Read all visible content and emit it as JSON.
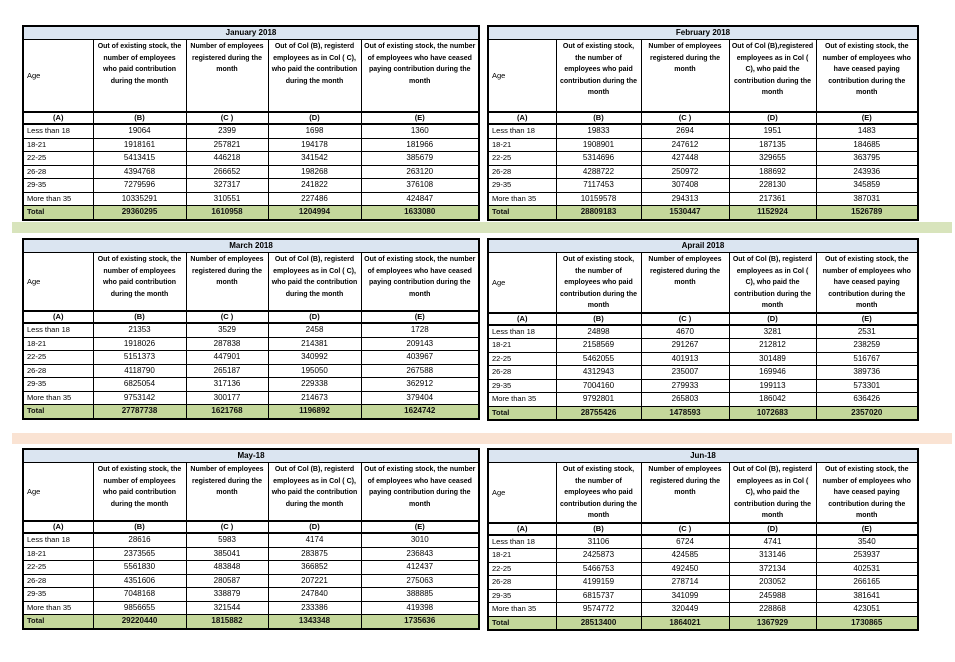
{
  "age_header": "Age",
  "total_label": "Total",
  "column_letters": [
    "(A)",
    "(B)",
    "(C )",
    "(D)",
    "(E)"
  ],
  "colors": {
    "title_bar_bg": "#DBE5F1",
    "total_row_bg": "#C4D79B",
    "green_band": "#D8E4BC",
    "peach_band": "#FAE3D3",
    "border": "#000000",
    "page_bg": "#FFFFFF"
  },
  "months": [
    {
      "title": "January 2018",
      "headers": {
        "b": "Out of existing stock, the number of employees who paid contribution during the month",
        "c": "Number of employees registered during the month",
        "d": "Out of Col (B), registerd employees as in Col ( C), who paid the contribution during the month",
        "e": "Out of existing stock, the number of  employees who have ceased paying contribution during the month"
      },
      "rows": [
        {
          "age": "Less than 18",
          "b": "19064",
          "c": "2399",
          "d": "1698",
          "e": "1360"
        },
        {
          "age": "18-21",
          "b": "1918161",
          "c": "257821",
          "d": "194178",
          "e": "181966"
        },
        {
          "age": "22-25",
          "b": "5413415",
          "c": "446218",
          "d": "341542",
          "e": "385679"
        },
        {
          "age": "26-28",
          "b": "4394768",
          "c": "266652",
          "d": "198268",
          "e": "263120"
        },
        {
          "age": "29-35",
          "b": "7279596",
          "c": "327317",
          "d": "241822",
          "e": "376108"
        },
        {
          "age": "More than 35",
          "b": "10335291",
          "c": "310551",
          "d": "227486",
          "e": "424847"
        }
      ],
      "total": {
        "b": "29360295",
        "c": "1610958",
        "d": "1204994",
        "e": "1633080"
      }
    },
    {
      "title": "February 2018",
      "headers": {
        "b": "Out of existing stock, the number of employees who paid contribution during the month",
        "c": "Number of employees registered during the month",
        "d": "Out of Col (B),registered employees as in Col ( C), who paid the contribution during the month",
        "e": "Out of existing stock, the number of  employees who have ceased paying contribution during the month"
      },
      "rows": [
        {
          "age": "Less than 18",
          "b": "19833",
          "c": "2694",
          "d": "1951",
          "e": "1483"
        },
        {
          "age": "18-21",
          "b": "1908901",
          "c": "247612",
          "d": "187135",
          "e": "184685"
        },
        {
          "age": "22-25",
          "b": "5314696",
          "c": "427448",
          "d": "329655",
          "e": "363795"
        },
        {
          "age": "26-28",
          "b": "4288722",
          "c": "250972",
          "d": "188692",
          "e": "243936"
        },
        {
          "age": "29-35",
          "b": "7117453",
          "c": "307408",
          "d": "228130",
          "e": "345859"
        },
        {
          "age": "More than 35",
          "b": "10159578",
          "c": "294313",
          "d": "217361",
          "e": "387031"
        }
      ],
      "total": {
        "b": "28809183",
        "c": "1530447",
        "d": "1152924",
        "e": "1526789"
      }
    },
    {
      "title": "March 2018",
      "headers": {
        "b": "Out of existing stock, the number of employees who paid contribution during the month",
        "c": "Number of employees registered during the month",
        "d": "Out of Col (B), registerd employees as in Col ( C), who paid the contribution during the month",
        "e": "Out of existing stock, the number of  employees who have ceased paying contribution during the month"
      },
      "rows": [
        {
          "age": "Less than 18",
          "b": "21353",
          "c": "3529",
          "d": "2458",
          "e": "1728"
        },
        {
          "age": "18-21",
          "b": "1918026",
          "c": "287838",
          "d": "214381",
          "e": "209143"
        },
        {
          "age": "22-25",
          "b": "5151373",
          "c": "447901",
          "d": "340992",
          "e": "403967"
        },
        {
          "age": "26-28",
          "b": "4118790",
          "c": "265187",
          "d": "195050",
          "e": "267588"
        },
        {
          "age": "29-35",
          "b": "6825054",
          "c": "317136",
          "d": "229338",
          "e": "362912"
        },
        {
          "age": "More than 35",
          "b": "9753142",
          "c": "300177",
          "d": "214673",
          "e": "379404"
        }
      ],
      "total": {
        "b": "27787738",
        "c": "1621768",
        "d": "1196892",
        "e": "1624742"
      }
    },
    {
      "title": "Aprail 2018",
      "headers": {
        "b": "Out of existing stock, the number of employees who paid contribution during the month",
        "c": "Number of employees registered during the month",
        "d": "Out of Col (B), registerd employees as in Col ( C), who paid the contribution during the month",
        "e": "Out of existing stock, the number of  employees who have ceased paying contribution during the month"
      },
      "rows": [
        {
          "age": "Less than 18",
          "b": "24898",
          "c": "4670",
          "d": "3281",
          "e": "2531"
        },
        {
          "age": "18-21",
          "b": "2158569",
          "c": "291267",
          "d": "212812",
          "e": "238259"
        },
        {
          "age": "22-25",
          "b": "5462055",
          "c": "401913",
          "d": "301489",
          "e": "516767"
        },
        {
          "age": "26-28",
          "b": "4312943",
          "c": "235007",
          "d": "169946",
          "e": "389736"
        },
        {
          "age": "29-35",
          "b": "7004160",
          "c": "279933",
          "d": "199113",
          "e": "573301"
        },
        {
          "age": "More than 35",
          "b": "9792801",
          "c": "265803",
          "d": "186042",
          "e": "636426"
        }
      ],
      "total": {
        "b": "28755426",
        "c": "1478593",
        "d": "1072683",
        "e": "2357020"
      }
    },
    {
      "title": "May-18",
      "headers": {
        "b": "Out of existing stock, the number of employees who paid contribution during the month",
        "c": "Number of employees registered during the month",
        "d": "Out of Col (B), registerd employees as in Col ( C), who paid the contribution during the month",
        "e": "Out of existing stock, the number of  employees who have ceased paying contribution during the month"
      },
      "rows": [
        {
          "age": "Less than 18",
          "b": "28616",
          "c": "5983",
          "d": "4174",
          "e": "3010"
        },
        {
          "age": "18-21",
          "b": "2373565",
          "c": "385041",
          "d": "283875",
          "e": "236843"
        },
        {
          "age": "22-25",
          "b": "5561830",
          "c": "483848",
          "d": "366852",
          "e": "412437"
        },
        {
          "age": "26-28",
          "b": "4351606",
          "c": "280587",
          "d": "207221",
          "e": "275063"
        },
        {
          "age": "29-35",
          "b": "7048168",
          "c": "338879",
          "d": "247840",
          "e": "388885"
        },
        {
          "age": "More than 35",
          "b": "9856655",
          "c": "321544",
          "d": "233386",
          "e": "419398"
        }
      ],
      "total": {
        "b": "29220440",
        "c": "1815882",
        "d": "1343348",
        "e": "1735636"
      }
    },
    {
      "title": "Jun-18",
      "headers": {
        "b": "Out of existing stock, the number of employees who paid contribution during the month",
        "c": "Number of employees registered during the month",
        "d": "Out of Col (B), registerd employees as in Col ( C), who paid the contribution during the month",
        "e": "Out of existing stock, the number of  employees who have ceased paying contribution during the month"
      },
      "rows": [
        {
          "age": "Less than 18",
          "b": "31106",
          "c": "6724",
          "d": "4741",
          "e": "3540"
        },
        {
          "age": "18-21",
          "b": "2425873",
          "c": "424585",
          "d": "313146",
          "e": "253937"
        },
        {
          "age": "22-25",
          "b": "5466753",
          "c": "492450",
          "d": "372134",
          "e": "402531"
        },
        {
          "age": "26-28",
          "b": "4199159",
          "c": "278714",
          "d": "203052",
          "e": "266165"
        },
        {
          "age": "29-35",
          "b": "6815737",
          "c": "341099",
          "d": "245988",
          "e": "381641"
        },
        {
          "age": "More than 35",
          "b": "9574772",
          "c": "320449",
          "d": "228868",
          "e": "423051"
        }
      ],
      "total": {
        "b": "28513400",
        "c": "1864021",
        "d": "1367929",
        "e": "1730865"
      }
    }
  ]
}
